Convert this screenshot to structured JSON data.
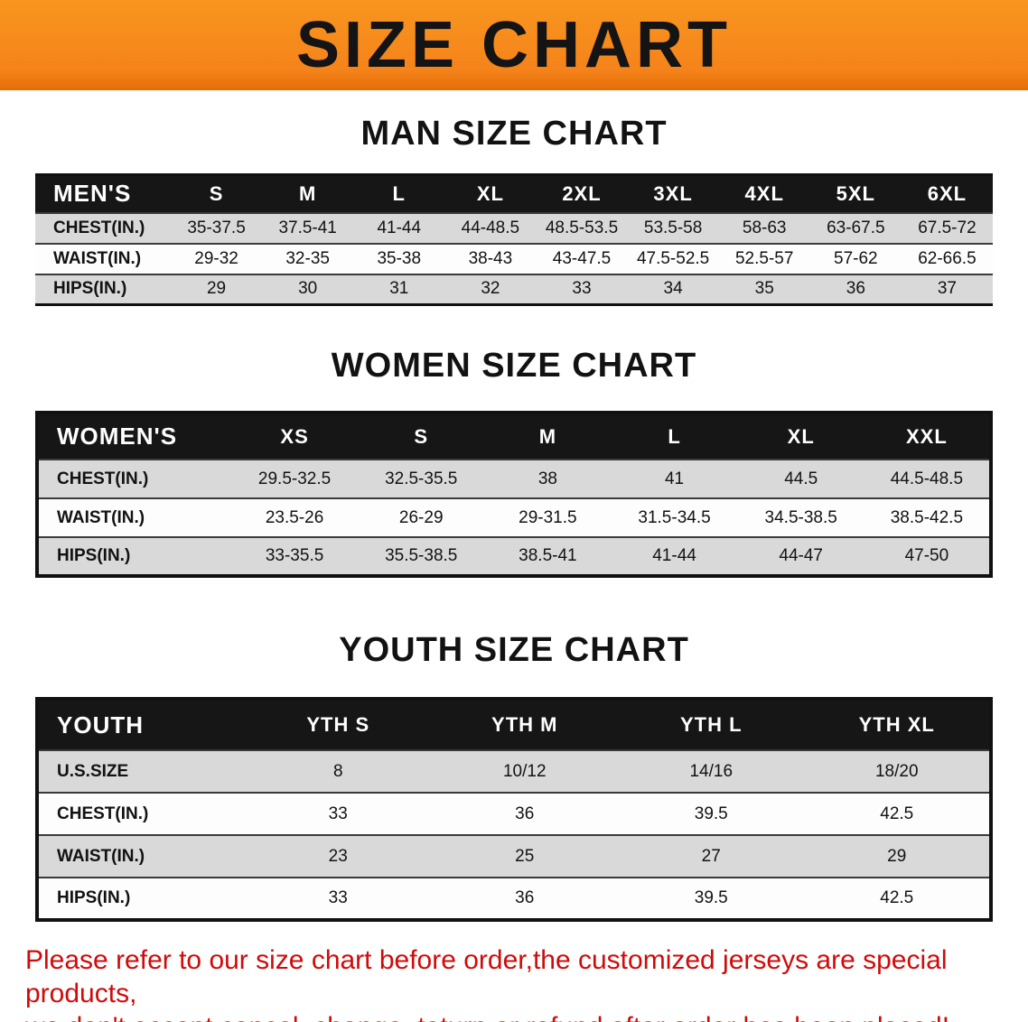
{
  "banner": {
    "title": "SIZE CHART"
  },
  "sections": [
    {
      "heading": "MAN SIZE CHART",
      "table": {
        "header": [
          "MEN'S",
          "S",
          "M",
          "L",
          "XL",
          "2XL",
          "3XL",
          "4XL",
          "5XL",
          "6XL"
        ],
        "rows": [
          {
            "label": "CHEST(IN.)",
            "values": [
              "35-37.5",
              "37.5-41",
              "41-44",
              "44-48.5",
              "48.5-53.5",
              "53.5-58",
              "58-63",
              "63-67.5",
              "67.5-72"
            ]
          },
          {
            "label": "WAIST(IN.)",
            "values": [
              "29-32",
              "32-35",
              "35-38",
              "38-43",
              "43-47.5",
              "47.5-52.5",
              "52.5-57",
              "57-62",
              "62-66.5"
            ]
          },
          {
            "label": "HIPS(IN.)",
            "values": [
              "29",
              "30",
              "31",
              "32",
              "33",
              "34",
              "35",
              "36",
              "37"
            ]
          }
        ]
      }
    },
    {
      "heading": "WOMEN SIZE CHART",
      "table": {
        "header": [
          "WOMEN'S",
          "XS",
          "S",
          "M",
          "L",
          "XL",
          "XXL"
        ],
        "rows": [
          {
            "label": "CHEST(IN.)",
            "values": [
              "29.5-32.5",
              "32.5-35.5",
              "38",
              "41",
              "44.5",
              "44.5-48.5"
            ]
          },
          {
            "label": "WAIST(IN.)",
            "values": [
              "23.5-26",
              "26-29",
              "29-31.5",
              "31.5-34.5",
              "34.5-38.5",
              "38.5-42.5"
            ]
          },
          {
            "label": "HIPS(IN.)",
            "values": [
              "33-35.5",
              "35.5-38.5",
              "38.5-41",
              "41-44",
              "44-47",
              "47-50"
            ]
          }
        ]
      }
    },
    {
      "heading": "YOUTH SIZE CHART",
      "table": {
        "header": [
          "YOUTH",
          "YTH S",
          "YTH M",
          "YTH L",
          "YTH XL"
        ],
        "rows": [
          {
            "label": "U.S.SIZE",
            "values": [
              "8",
              "10/12",
              "14/16",
              "18/20"
            ]
          },
          {
            "label": "CHEST(IN.)",
            "values": [
              "33",
              "36",
              "39.5",
              "42.5"
            ]
          },
          {
            "label": "WAIST(IN.)",
            "values": [
              "23",
              "25",
              "27",
              "29"
            ]
          },
          {
            "label": "HIPS(IN.)",
            "values": [
              "33",
              "36",
              "39.5",
              "42.5"
            ]
          }
        ]
      }
    }
  ],
  "footer": {
    "line1": "Please refer to our size chart before order,the customized jerseys are special products,",
    "line2": "we don't accept cancel, change, teturn or refund after order has been placed!"
  },
  "colors": {
    "banner_orange": "#F5831A",
    "banner_edge": "#E46D06",
    "table_header_black": "#161616",
    "row_shade_gray": "#D9D9D9",
    "disclaimer_red": "#CF0B0B"
  }
}
